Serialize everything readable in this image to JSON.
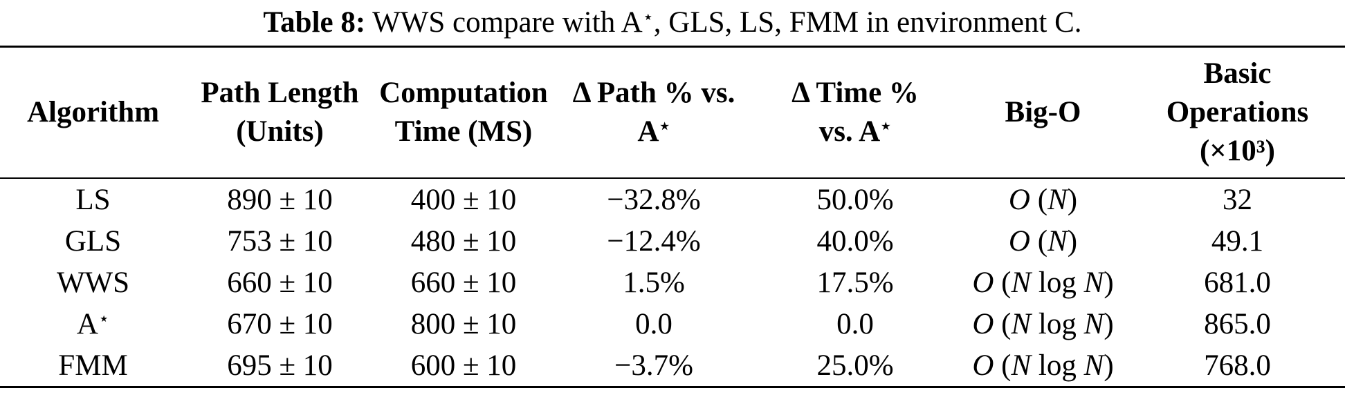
{
  "caption": {
    "label": "Table 8:",
    "text": " WWS compare with A⋆, GLS, LS, FMM in environment C."
  },
  "table": {
    "headers": [
      "Algorithm",
      "Path Length\n(Units)",
      "Computation\nTime (MS)",
      "Δ Path % vs.\nA⋆",
      "Δ Time %\nvs. A⋆",
      "Big-O",
      "Basic\nOperations\n(×10³)"
    ],
    "rows": [
      {
        "algorithm": "LS",
        "path_length": "890 ± 10",
        "comp_time": "400 ± 10",
        "d_path": "−32.8%",
        "d_time": "50.0%",
        "big_o": "O (N)",
        "basic_ops": "32"
      },
      {
        "algorithm": "GLS",
        "path_length": "753 ± 10",
        "comp_time": "480 ± 10",
        "d_path": "−12.4%",
        "d_time": "40.0%",
        "big_o": "O (N)",
        "basic_ops": "49.1"
      },
      {
        "algorithm": "WWS",
        "path_length": "660 ± 10",
        "comp_time": "660 ± 10",
        "d_path": "1.5%",
        "d_time": "17.5%",
        "big_o": "O (N log N)",
        "basic_ops": "681.0"
      },
      {
        "algorithm": "A⋆",
        "path_length": "670 ± 10",
        "comp_time": "800 ± 10",
        "d_path": "0.0",
        "d_time": "0.0",
        "big_o": "O (N log N)",
        "basic_ops": "865.0"
      },
      {
        "algorithm": "FMM",
        "path_length": "695 ± 10",
        "comp_time": "600 ± 10",
        "d_path": "−3.7%",
        "d_time": "25.0%",
        "big_o": "O (N log N)",
        "basic_ops": "768.0"
      }
    ]
  },
  "colors": {
    "text": "#000000",
    "background": "#ffffff",
    "rule": "#000000"
  }
}
